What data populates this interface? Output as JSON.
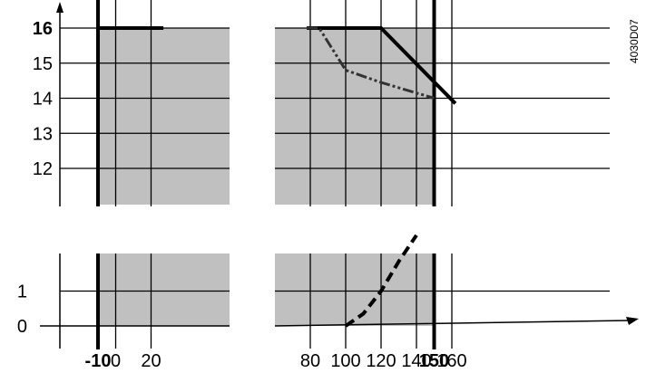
{
  "chart_data": {
    "type": "line",
    "x_axis": {
      "ticks": [
        {
          "value": -10,
          "label": "-10",
          "bold": true
        },
        {
          "value": 0,
          "label": "0",
          "bold": false
        },
        {
          "value": 20,
          "label": "20",
          "bold": false
        },
        {
          "value": 80,
          "label": "80",
          "bold": false
        },
        {
          "value": 100,
          "label": "100",
          "bold": false
        },
        {
          "value": 120,
          "label": "120",
          "bold": false
        },
        {
          "value": 140,
          "label": "140",
          "bold": false
        },
        {
          "value": 150,
          "label": "150",
          "bold": true
        },
        {
          "value": 160,
          "label": "160",
          "bold": false
        }
      ],
      "broken_between": [
        27,
        78
      ]
    },
    "upper_panel": {
      "y_ticks": [
        {
          "value": 16,
          "label": "16",
          "bold": true
        },
        {
          "value": 15,
          "label": "15",
          "bold": false
        },
        {
          "value": 14,
          "label": "14",
          "bold": false
        },
        {
          "value": 13,
          "label": "13",
          "bold": false
        },
        {
          "value": 12,
          "label": "12",
          "bold": false
        }
      ],
      "series": [
        {
          "style": "solid",
          "points": [
            [
              -10,
              16
            ],
            [
              27,
              16
            ],
            null,
            [
              78,
              16
            ],
            [
              120,
              16
            ],
            [
              162,
              13.85
            ]
          ]
        },
        {
          "style": "dash-dot-dot",
          "points": [
            [
              78,
              16
            ],
            [
              85,
              16
            ],
            [
              100,
              14.8
            ],
            [
              120,
              14.45
            ],
            [
              150,
              14.0
            ]
          ]
        }
      ]
    },
    "lower_panel": {
      "y_ticks": [
        {
          "value": 1,
          "label": "1",
          "bold": false
        },
        {
          "value": 0,
          "label": "0",
          "bold": false
        }
      ],
      "series": [
        {
          "style": "dashed",
          "points": [
            [
              100,
              0
            ],
            [
              110,
              0.35
            ],
            [
              120,
              1.0
            ],
            [
              130,
              1.85
            ],
            [
              140,
              2.6
            ]
          ]
        }
      ]
    },
    "shaded_range_x": [
      -10,
      150
    ],
    "limit_lines_x": [
      -10,
      150
    ],
    "grid": true,
    "colors": {
      "shade": "#c0c0c0",
      "line": "#000000",
      "dash_dot": "#333333"
    }
  },
  "figure_code": "4030D07"
}
